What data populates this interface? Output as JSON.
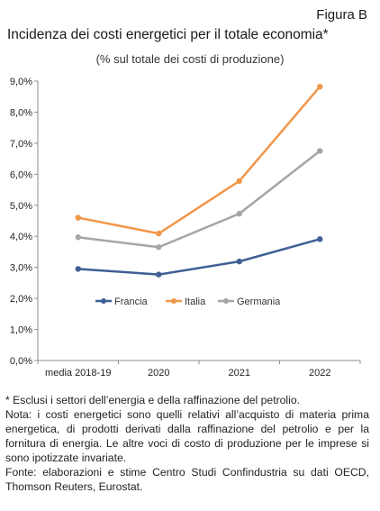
{
  "figure_label": "Figura B",
  "notes": [
    "* Esclusi i settori dell’energia e della raffinazione del petrolio.",
    "Nota: i costi energetici sono quelli relativi all’acquisto di materia prima energetica, di prodotti derivati dalla raffinazione del petrolio e per la fornitura di energia. Le altre voci di costo di produzione per le imprese si sono ipotizzate invariate.",
    "Fonte: elaborazioni e stime Centro Studi Confindustria su dati OECD, Thomson Reuters, Eurostat."
  ],
  "chart_data": {
    "type": "line",
    "title": "Incidenza dei costi energetici per il totale economia*",
    "subtitle": "(% sul totale dei costi di produzione)",
    "categories": [
      "media 2018-19",
      "2020",
      "2021",
      "2022"
    ],
    "y_ticks": [
      "0,0%",
      "1,0%",
      "2,0%",
      "3,0%",
      "4,0%",
      "5,0%",
      "6,0%",
      "7,0%",
      "8,0%",
      "9,0%"
    ],
    "ylim": [
      0,
      9
    ],
    "grid": false,
    "legend_position": "inside-lower-center",
    "series": [
      {
        "name": "Francia",
        "color": "#3f5f95",
        "values": [
          2.95,
          2.77,
          3.19,
          3.91
        ]
      },
      {
        "name": "Italia",
        "color": "#f0974a",
        "values": [
          4.6,
          4.09,
          5.78,
          8.82
        ]
      },
      {
        "name": "Germania",
        "color": "#a5a5a5",
        "values": [
          3.97,
          3.65,
          4.73,
          6.75
        ]
      }
    ]
  }
}
